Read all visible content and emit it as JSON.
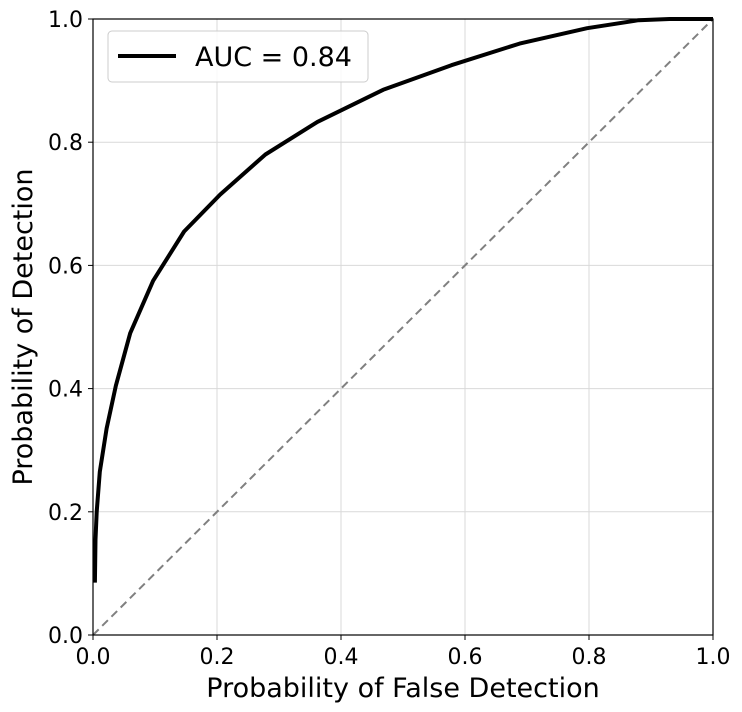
{
  "chart_data": {
    "type": "line",
    "title": "",
    "xlabel": "Probability of False Detection",
    "ylabel": "Probability of Detection",
    "xlim": [
      0,
      1
    ],
    "ylim": [
      0,
      1
    ],
    "x_ticks": [
      "0.0",
      "0.2",
      "0.4",
      "0.6",
      "0.8",
      "1.0"
    ],
    "y_ticks": [
      "0.0",
      "0.2",
      "0.4",
      "0.6",
      "0.8",
      "1.0"
    ],
    "grid": true,
    "legend_position": "top-left",
    "series": [
      {
        "name": "AUC = 0.84",
        "color": "#000000",
        "style": "solid",
        "x": [
          0.003,
          0.004,
          0.006,
          0.011,
          0.022,
          0.037,
          0.06,
          0.097,
          0.147,
          0.205,
          0.278,
          0.362,
          0.468,
          0.578,
          0.688,
          0.797,
          0.88,
          0.93,
          1.0
        ],
        "y": [
          0.085,
          0.155,
          0.2,
          0.265,
          0.335,
          0.405,
          0.49,
          0.575,
          0.655,
          0.715,
          0.78,
          0.833,
          0.885,
          0.925,
          0.96,
          0.985,
          0.998,
          1.0,
          1.0
        ]
      },
      {
        "name": "",
        "color": "#808080",
        "style": "dashed",
        "x": [
          0,
          1
        ],
        "y": [
          0,
          1
        ]
      }
    ]
  }
}
